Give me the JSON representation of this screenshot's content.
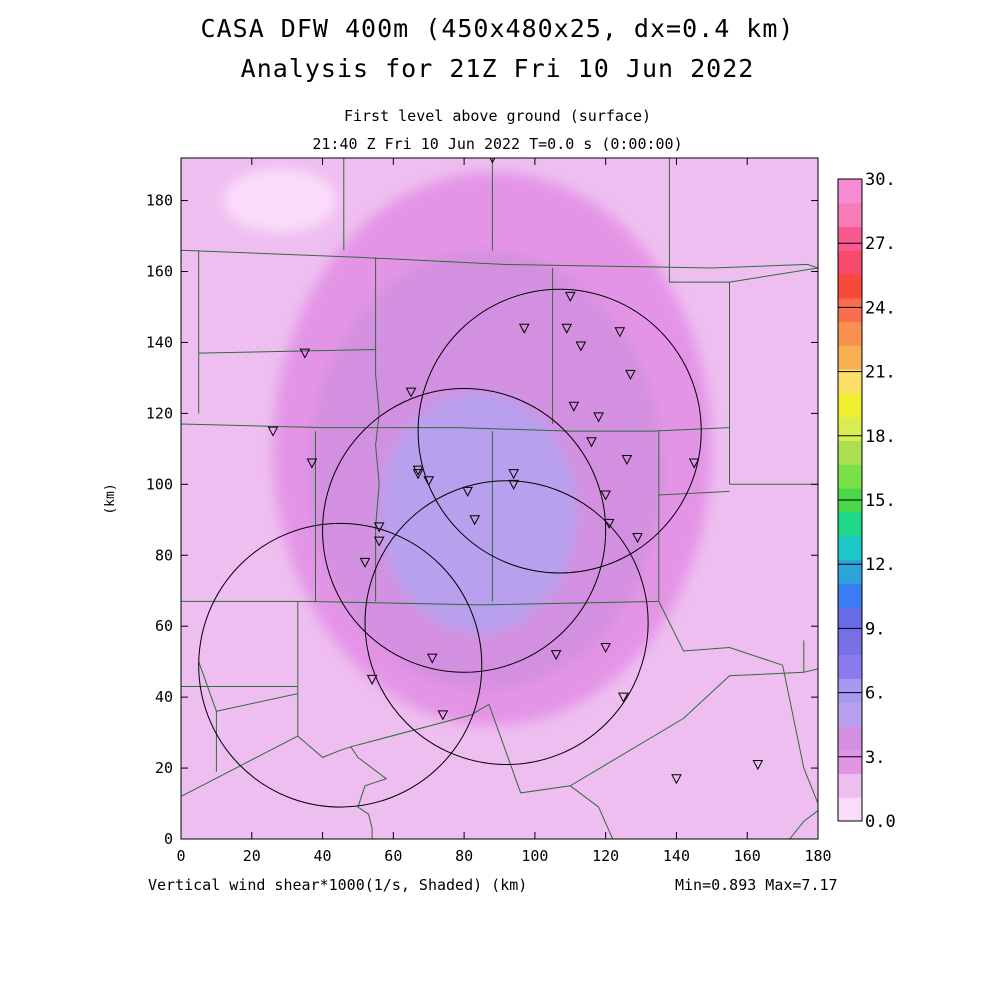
{
  "title_line1": "CASA DFW 400m (450x480x25, dx=0.4 km)",
  "title_line2": "Analysis for 21Z Fri 10 Jun 2022",
  "subtitle_line1": "First level above ground (surface)",
  "subtitle_line2": "21:40 Z Fri 10 Jun 2022   T=0.0 s (0:00:00)",
  "bottom_label": "Vertical wind shear*1000(1/s, Shaded)  (km)",
  "min_max": "Min=0.893 Max=7.17",
  "chart_data": {
    "type": "heatmap",
    "xlabel": "",
    "ylabel": "(km)",
    "xlim": [
      0,
      180
    ],
    "ylim": [
      0,
      192
    ],
    "xticks": [
      0,
      20,
      40,
      60,
      80,
      100,
      120,
      140,
      160,
      180
    ],
    "yticks": [
      0,
      20,
      40,
      60,
      80,
      100,
      120,
      140,
      160,
      180
    ],
    "colorbar": {
      "tick_labels": [
        "0.0",
        "3.",
        "6.",
        "9.",
        "12.",
        "15.",
        "18.",
        "21.",
        "24.",
        "27.",
        "30."
      ],
      "tick_values": [
        0,
        3,
        6,
        9,
        12,
        15,
        18,
        21,
        24,
        27,
        30
      ],
      "levels": [
        0,
        1.5,
        3,
        4.5,
        6,
        7.5,
        9,
        10.5,
        12,
        13.5,
        15,
        16.5,
        18,
        19.5,
        21,
        22.5,
        24,
        25.5,
        27,
        28.5,
        30
      ],
      "colors": [
        "#fadcfa",
        "#eebef0",
        "#e494e6",
        "#d490e0",
        "#b8a0ee",
        "#a898ee",
        "#8a7cee",
        "#7a70e6",
        "#6a6ce6",
        "#3c7cf2",
        "#2ca4d8",
        "#1ec8c8",
        "#1ed88a",
        "#4ad84a",
        "#78e048",
        "#aae050",
        "#d8ee50",
        "#f0f030",
        "#fae066",
        "#f8b050",
        "#f89050",
        "#f86e4e",
        "#f84a3c",
        "#f84a6a",
        "#f85a90",
        "#f87cb8",
        "#f88cd4"
      ]
    },
    "min": 0.893,
    "max": 7.17,
    "field_regions": [
      {
        "level": 0.9,
        "center": [
          28,
          180
        ],
        "rx": 16,
        "ry": 9
      },
      {
        "level": 3.2,
        "center": [
          88,
          110
        ],
        "rx": 62,
        "ry": 78
      },
      {
        "level": 4.5,
        "center": [
          86,
          104
        ],
        "rx": 50,
        "ry": 62
      },
      {
        "level": 5.3,
        "center": [
          84,
          98
        ],
        "rx": 40,
        "ry": 48
      },
      {
        "level": 6.2,
        "center": [
          84,
          92
        ],
        "rx": 28,
        "ry": 34
      }
    ],
    "radar_circles": [
      {
        "center": [
          80,
          87
        ],
        "radius": 40
      },
      {
        "center": [
          107,
          115
        ],
        "radius": 40
      },
      {
        "center": [
          92,
          61
        ],
        "radius": 40
      },
      {
        "center": [
          45,
          49
        ],
        "radius": 40
      }
    ],
    "stations": [
      [
        88,
        192
      ],
      [
        110,
        153
      ],
      [
        35,
        137
      ],
      [
        97,
        144
      ],
      [
        109,
        144
      ],
      [
        113,
        139
      ],
      [
        124,
        143
      ],
      [
        127,
        131
      ],
      [
        65,
        126
      ],
      [
        111,
        122
      ],
      [
        118,
        119
      ],
      [
        26,
        115
      ],
      [
        37,
        106
      ],
      [
        67,
        104
      ],
      [
        67,
        103
      ],
      [
        70,
        101
      ],
      [
        94,
        103
      ],
      [
        94,
        100
      ],
      [
        116,
        112
      ],
      [
        126,
        107
      ],
      [
        145,
        106
      ],
      [
        81,
        98
      ],
      [
        120,
        97
      ],
      [
        56,
        88
      ],
      [
        56,
        84
      ],
      [
        83,
        90
      ],
      [
        121,
        89
      ],
      [
        129,
        85
      ],
      [
        52,
        78
      ],
      [
        71,
        51
      ],
      [
        106,
        52
      ],
      [
        120,
        54
      ],
      [
        54,
        45
      ],
      [
        74,
        35
      ],
      [
        125,
        40
      ],
      [
        140,
        17
      ],
      [
        163,
        21
      ]
    ],
    "boundaries": [
      [
        [
          0,
          166
        ],
        [
          50,
          164
        ],
        [
          91,
          162
        ],
        [
          150,
          161
        ],
        [
          177,
          162
        ],
        [
          180,
          161
        ]
      ],
      [
        [
          0,
          117
        ],
        [
          40,
          116
        ],
        [
          78,
          116
        ],
        [
          110,
          115
        ],
        [
          133,
          115
        ],
        [
          155,
          116
        ]
      ],
      [
        [
          0,
          67
        ],
        [
          35,
          67
        ],
        [
          85,
          66
        ],
        [
          135,
          67
        ]
      ],
      [
        [
          5,
          166
        ],
        [
          5,
          120
        ]
      ],
      [
        [
          5,
          137
        ],
        [
          55,
          138
        ]
      ],
      [
        [
          46,
          192
        ],
        [
          46,
          166
        ]
      ],
      [
        [
          55,
          164
        ],
        [
          55,
          131
        ],
        [
          56,
          120
        ],
        [
          55,
          111
        ],
        [
          56,
          100
        ],
        [
          55,
          88
        ],
        [
          55,
          67
        ]
      ],
      [
        [
          38,
          115
        ],
        [
          38,
          67
        ]
      ],
      [
        [
          88,
          192
        ],
        [
          88,
          166
        ]
      ],
      [
        [
          105,
          161
        ],
        [
          105,
          117
        ]
      ],
      [
        [
          138,
          192
        ],
        [
          138,
          157
        ]
      ],
      [
        [
          138,
          157
        ],
        [
          155,
          157
        ],
        [
          180,
          161
        ]
      ],
      [
        [
          155,
          157
        ],
        [
          155,
          100
        ]
      ],
      [
        [
          155,
          100
        ],
        [
          180,
          100
        ]
      ],
      [
        [
          88,
          115
        ],
        [
          88,
          92
        ],
        [
          88,
          67
        ]
      ],
      [
        [
          135,
          115
        ],
        [
          135,
          97
        ],
        [
          155,
          98
        ]
      ],
      [
        [
          135,
          97
        ],
        [
          135,
          67
        ],
        [
          142,
          53
        ],
        [
          155,
          54
        ],
        [
          170,
          49
        ],
        [
          176,
          20
        ]
      ],
      [
        [
          33,
          67
        ],
        [
          33,
          29
        ]
      ],
      [
        [
          0,
          43
        ],
        [
          33,
          43
        ]
      ],
      [
        [
          5,
          50
        ],
        [
          10,
          36
        ],
        [
          33,
          41
        ]
      ],
      [
        [
          10,
          36
        ],
        [
          10,
          19
        ]
      ],
      [
        [
          33,
          29
        ],
        [
          40,
          23
        ],
        [
          45,
          25
        ],
        [
          48,
          26
        ],
        [
          50,
          23
        ],
        [
          58,
          17
        ],
        [
          52,
          15
        ],
        [
          50,
          9
        ],
        [
          53,
          7
        ],
        [
          54,
          3
        ],
        [
          54,
          0
        ]
      ],
      [
        [
          48,
          26
        ],
        [
          82,
          35
        ],
        [
          87,
          38
        ],
        [
          96,
          13
        ],
        [
          110,
          15
        ],
        [
          142,
          34
        ],
        [
          155,
          46
        ],
        [
          176,
          47
        ],
        [
          180,
          48
        ]
      ],
      [
        [
          0,
          12
        ],
        [
          33,
          29
        ]
      ],
      [
        [
          110,
          15
        ],
        [
          118,
          9
        ],
        [
          122,
          0
        ]
      ],
      [
        [
          180,
          8
        ],
        [
          176,
          5
        ],
        [
          172,
          0
        ]
      ],
      [
        [
          176,
          20
        ],
        [
          180,
          10
        ]
      ],
      [
        [
          176,
          47
        ],
        [
          176,
          56
        ]
      ]
    ]
  }
}
